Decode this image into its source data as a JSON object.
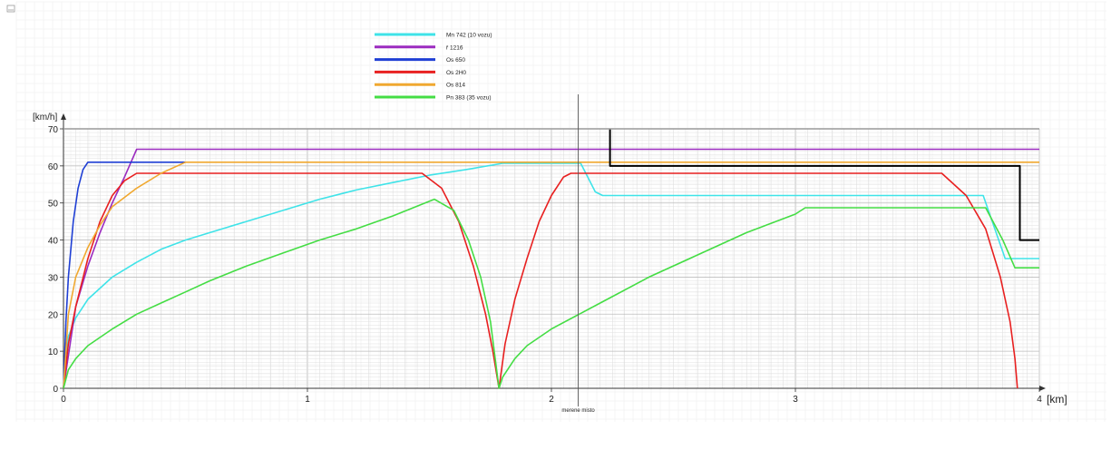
{
  "window": {
    "corner_icon": "minimize-icon"
  },
  "chart_data": {
    "type": "line",
    "xlabel": "[km]",
    "ylabel": "[km/h]",
    "xlim": [
      0,
      4
    ],
    "ylim": [
      0,
      70
    ],
    "x_ticks": [
      0,
      1,
      2,
      3,
      4
    ],
    "y_ticks": [
      0,
      10,
      20,
      30,
      40,
      50,
      60,
      70
    ],
    "grid": true,
    "legend_position": "top-center",
    "marker": {
      "x": 2.11,
      "label": "merene misto"
    },
    "series": [
      {
        "name": "Mn 742 (10 vozu)",
        "color": "#3fe3e8",
        "points": [
          [
            0,
            0
          ],
          [
            0.02,
            14
          ],
          [
            0.05,
            19
          ],
          [
            0.1,
            24
          ],
          [
            0.2,
            30
          ],
          [
            0.3,
            34
          ],
          [
            0.4,
            37.5
          ],
          [
            0.5,
            40
          ],
          [
            0.6,
            42
          ],
          [
            0.75,
            45
          ],
          [
            0.9,
            48
          ],
          [
            1.05,
            51
          ],
          [
            1.2,
            53.5
          ],
          [
            1.35,
            55.5
          ],
          [
            1.5,
            57.5
          ],
          [
            1.65,
            59
          ],
          [
            1.8,
            60.7
          ],
          [
            2.12,
            60.7
          ],
          [
            2.18,
            53
          ],
          [
            2.21,
            52
          ],
          [
            3.77,
            52
          ],
          [
            3.86,
            35
          ],
          [
            3.95,
            35
          ],
          [
            4.0,
            35
          ]
        ]
      },
      {
        "name": "ř 1216",
        "color": "#9b2bbf",
        "points": [
          [
            0,
            0
          ],
          [
            0.05,
            22
          ],
          [
            0.1,
            33
          ],
          [
            0.15,
            42
          ],
          [
            0.2,
            50
          ],
          [
            0.25,
            57
          ],
          [
            0.3,
            64.5
          ],
          [
            4.0,
            64.5
          ]
        ]
      },
      {
        "name": "Os 650",
        "color": "#1f3fd4",
        "points": [
          [
            0,
            0
          ],
          [
            0.01,
            18
          ],
          [
            0.02,
            30
          ],
          [
            0.04,
            45
          ],
          [
            0.06,
            54
          ],
          [
            0.08,
            59
          ],
          [
            0.1,
            61
          ],
          [
            0.5,
            61
          ]
        ]
      },
      {
        "name": "Os 2H0",
        "color": "#e82020",
        "points": [
          [
            0,
            0
          ],
          [
            0.02,
            12
          ],
          [
            0.05,
            22
          ],
          [
            0.1,
            35
          ],
          [
            0.15,
            45
          ],
          [
            0.2,
            52
          ],
          [
            0.25,
            56
          ],
          [
            0.3,
            58
          ],
          [
            1.47,
            58
          ],
          [
            1.55,
            54
          ],
          [
            1.62,
            45
          ],
          [
            1.68,
            33
          ],
          [
            1.73,
            20
          ],
          [
            1.76,
            10
          ],
          [
            1.785,
            0
          ],
          [
            1.81,
            12
          ],
          [
            1.85,
            24
          ],
          [
            1.9,
            35
          ],
          [
            1.95,
            45
          ],
          [
            2.0,
            52
          ],
          [
            2.05,
            57
          ],
          [
            2.08,
            58
          ],
          [
            3.6,
            58
          ],
          [
            3.7,
            52
          ],
          [
            3.78,
            43
          ],
          [
            3.84,
            30
          ],
          [
            3.88,
            18
          ],
          [
            3.9,
            8
          ],
          [
            3.91,
            0
          ]
        ]
      },
      {
        "name": "Os 814",
        "color": "#f0a830",
        "points": [
          [
            0,
            0
          ],
          [
            0.02,
            20
          ],
          [
            0.05,
            30
          ],
          [
            0.1,
            38
          ],
          [
            0.15,
            44
          ],
          [
            0.2,
            49
          ],
          [
            0.3,
            54
          ],
          [
            0.4,
            58
          ],
          [
            0.5,
            61
          ],
          [
            4.0,
            61
          ]
        ]
      },
      {
        "name": "Pn 383 (35 vozu)",
        "color": "#44dd44",
        "points": [
          [
            0,
            0
          ],
          [
            0.02,
            5
          ],
          [
            0.05,
            8
          ],
          [
            0.1,
            11.5
          ],
          [
            0.2,
            16
          ],
          [
            0.3,
            20
          ],
          [
            0.4,
            23
          ],
          [
            0.5,
            26
          ],
          [
            0.6,
            29
          ],
          [
            0.75,
            33
          ],
          [
            0.9,
            36.5
          ],
          [
            1.05,
            40
          ],
          [
            1.2,
            43
          ],
          [
            1.35,
            46.5
          ],
          [
            1.52,
            51
          ],
          [
            1.6,
            48
          ],
          [
            1.66,
            40
          ],
          [
            1.71,
            30
          ],
          [
            1.75,
            18
          ],
          [
            1.785,
            0
          ],
          [
            1.8,
            3
          ],
          [
            1.85,
            8
          ],
          [
            1.9,
            11.5
          ],
          [
            2.0,
            16
          ],
          [
            2.2,
            23
          ],
          [
            2.4,
            30
          ],
          [
            2.6,
            36
          ],
          [
            2.8,
            42
          ],
          [
            3.0,
            47
          ],
          [
            3.04,
            48.7
          ],
          [
            3.78,
            48.7
          ],
          [
            3.85,
            40
          ],
          [
            3.9,
            32.5
          ],
          [
            4.0,
            32.5
          ]
        ]
      },
      {
        "name": "",
        "color": "#000000",
        "points": [
          [
            2.24,
            70
          ],
          [
            2.24,
            60
          ],
          [
            3.92,
            60
          ],
          [
            3.92,
            40
          ],
          [
            4.0,
            40
          ]
        ]
      },
      {
        "name": "",
        "color": "#999999",
        "points": [
          [
            0,
            70
          ],
          [
            4.0,
            70
          ]
        ]
      }
    ]
  }
}
